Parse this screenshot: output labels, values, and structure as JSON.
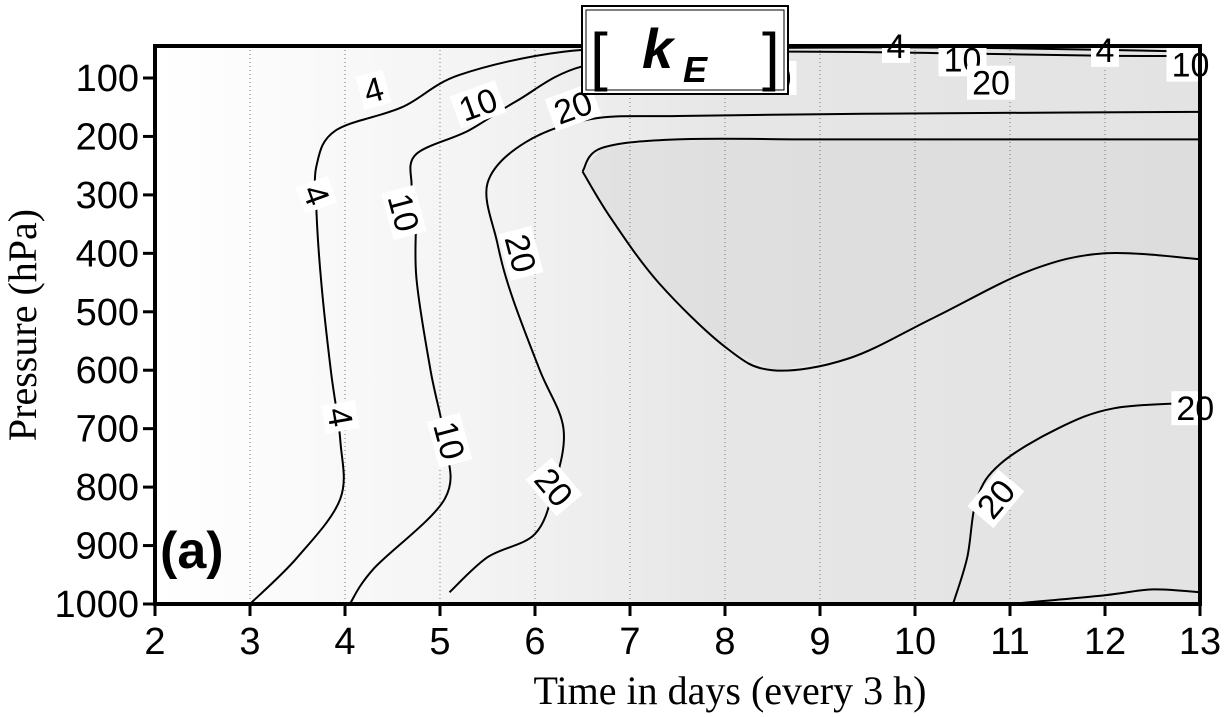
{
  "chart_data": {
    "type": "contour",
    "title": {
      "bracket_open": "[",
      "variable": "k",
      "subscript": "E",
      "bracket_close": "]"
    },
    "panel_label": "(a)",
    "xlabel": "Time in days (every 3 h)",
    "ylabel": "Pressure (hPa)",
    "xlim": [
      2,
      13
    ],
    "ylim": [
      1000,
      50
    ],
    "y_axis_inverted": true,
    "xticks": [
      "2",
      "3",
      "4",
      "5",
      "6",
      "7",
      "8",
      "9",
      "10",
      "11",
      "12",
      "13"
    ],
    "yticks": [
      "100",
      "200",
      "300",
      "400",
      "500",
      "600",
      "700",
      "800",
      "900",
      "1000"
    ],
    "grid": "vertical dotted lines at each day",
    "shading": "grey fill increasing with value",
    "contour_levels": [
      4,
      10,
      20,
      20
    ],
    "contours": [
      {
        "level": 4,
        "label": "4",
        "points": [
          [
            3.0,
            1000
          ],
          [
            3.5,
            920
          ],
          [
            3.95,
            820
          ],
          [
            3.95,
            720
          ],
          [
            3.85,
            600
          ],
          [
            3.75,
            450
          ],
          [
            3.7,
            330
          ],
          [
            3.7,
            250
          ],
          [
            3.9,
            190
          ],
          [
            4.6,
            150
          ],
          [
            5.2,
            95
          ],
          [
            6.3,
            55
          ],
          [
            7.5,
            50
          ],
          [
            9.0,
            48
          ],
          [
            10.5,
            48
          ],
          [
            12.0,
            52
          ],
          [
            13,
            55
          ]
        ],
        "labels": [
          {
            "text": "4",
            "x": 4.3,
            "p": 120,
            "rotate": -15
          },
          {
            "text": "4",
            "x": 3.7,
            "p": 300,
            "rotate": 70
          },
          {
            "text": "4",
            "x": 3.95,
            "p": 680,
            "rotate": 80
          },
          {
            "text": "4",
            "x": 9.8,
            "p": 45,
            "rotate": 0
          },
          {
            "text": "4",
            "x": 12.0,
            "p": 52,
            "rotate": 0
          }
        ]
      },
      {
        "level": 10,
        "label": "10",
        "points": [
          [
            4.05,
            1000
          ],
          [
            4.3,
            940
          ],
          [
            5.05,
            820
          ],
          [
            5.05,
            720
          ],
          [
            4.9,
            600
          ],
          [
            4.75,
            440
          ],
          [
            4.75,
            320
          ],
          [
            4.7,
            280
          ],
          [
            4.75,
            230
          ],
          [
            5.3,
            190
          ],
          [
            5.8,
            140
          ],
          [
            6.5,
            80
          ],
          [
            7.7,
            58
          ],
          [
            9.0,
            55
          ],
          [
            10.5,
            58
          ],
          [
            12.0,
            62
          ],
          [
            13,
            62
          ]
        ],
        "labels": [
          {
            "text": "10",
            "x": 5.4,
            "p": 145,
            "rotate": -20
          },
          {
            "text": "10",
            "x": 4.62,
            "p": 330,
            "rotate": 75
          },
          {
            "text": "10",
            "x": 5.1,
            "p": 720,
            "rotate": 75
          },
          {
            "text": "10",
            "x": 10.5,
            "p": 68,
            "rotate": 0
          },
          {
            "text": "10",
            "x": 12.9,
            "p": 77,
            "rotate": 0
          }
        ]
      },
      {
        "level": 20,
        "label": "20",
        "points": [
          [
            5.1,
            980
          ],
          [
            5.5,
            920
          ],
          [
            6.0,
            880
          ],
          [
            6.2,
            800
          ],
          [
            6.3,
            700
          ],
          [
            6.05,
            600
          ],
          [
            5.75,
            470
          ],
          [
            5.6,
            380
          ],
          [
            5.5,
            280
          ],
          [
            5.9,
            210
          ],
          [
            6.6,
            170
          ],
          [
            7.5,
            165
          ],
          [
            9.0,
            162
          ],
          [
            10.5,
            160
          ],
          [
            13,
            158
          ]
        ],
        "labels": [
          {
            "text": "20",
            "x": 6.4,
            "p": 150,
            "rotate": -20
          },
          {
            "text": "20",
            "x": 5.85,
            "p": 400,
            "rotate": 75
          },
          {
            "text": "20",
            "x": 6.2,
            "p": 800,
            "rotate": 50
          },
          {
            "text": "20",
            "x": 8.5,
            "p": 100,
            "rotate": 0
          },
          {
            "text": "20",
            "x": 10.8,
            "p": 108,
            "rotate": 0
          }
        ]
      },
      {
        "level": 20,
        "label": "20",
        "points": [
          [
            6.5,
            260
          ],
          [
            6.7,
            220
          ],
          [
            7.5,
            205
          ],
          [
            9.0,
            205
          ],
          [
            10.5,
            205
          ],
          [
            12.0,
            205
          ],
          [
            13,
            205
          ]
        ],
        "labels": []
      },
      {
        "level": 20,
        "label": "20",
        "points": [
          [
            6.5,
            260
          ],
          [
            6.8,
            340
          ],
          [
            7.3,
            450
          ],
          [
            8.0,
            560
          ],
          [
            8.5,
            600
          ],
          [
            9.3,
            580
          ],
          [
            10.2,
            510
          ],
          [
            11.2,
            430
          ],
          [
            12.0,
            400
          ],
          [
            13,
            410
          ]
        ],
        "labels": []
      },
      {
        "level": 20,
        "label": "20",
        "points": [
          [
            10.4,
            1000
          ],
          [
            10.55,
            920
          ],
          [
            10.65,
            820
          ],
          [
            10.9,
            760
          ],
          [
            11.5,
            700
          ],
          [
            12.1,
            665
          ],
          [
            13,
            655
          ]
        ],
        "labels": [
          {
            "text": "20",
            "x": 10.85,
            "p": 820,
            "rotate": -50
          },
          {
            "text": "20",
            "x": 12.95,
            "p": 665,
            "rotate": 0
          }
        ]
      },
      {
        "level": 20,
        "label": "20",
        "points": [
          [
            11.0,
            1000
          ],
          [
            12.0,
            985
          ],
          [
            12.5,
            975
          ],
          [
            13,
            980
          ]
        ],
        "labels": []
      }
    ]
  }
}
